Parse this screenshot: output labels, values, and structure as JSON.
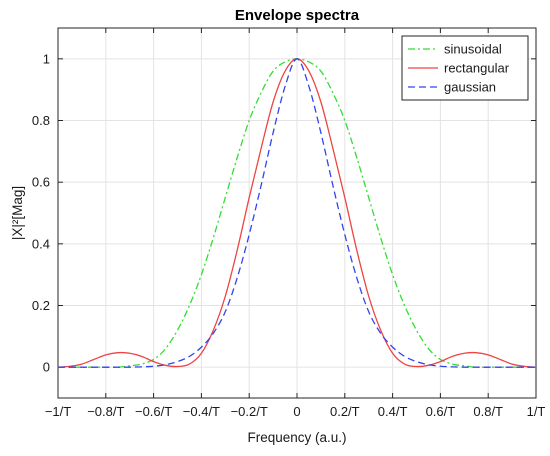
{
  "chart_data": {
    "type": "line",
    "title": "Envelope spectra",
    "xlabel": "Frequency (a.u.)",
    "ylabel": "|X|²[Mag]",
    "xlim": [
      -1,
      1
    ],
    "ylim": [
      -0.1,
      1.1
    ],
    "grid": true,
    "legend_position": "top-right",
    "x_ticks": [
      {
        "value": -1,
        "label": "−1/T"
      },
      {
        "value": -0.8,
        "label": "−0.8/T"
      },
      {
        "value": -0.6,
        "label": "−0.6/T"
      },
      {
        "value": -0.4,
        "label": "−0.4/T"
      },
      {
        "value": -0.2,
        "label": "−0.2/T"
      },
      {
        "value": 0,
        "label": "0"
      },
      {
        "value": 0.2,
        "label": "0.2/T"
      },
      {
        "value": 0.4,
        "label": "0.4/T"
      },
      {
        "value": 0.6,
        "label": "0.6/T"
      },
      {
        "value": 0.8,
        "label": "0.8/T"
      },
      {
        "value": 1,
        "label": "1/T"
      }
    ],
    "y_ticks": [
      {
        "value": 0,
        "label": "0"
      },
      {
        "value": 0.2,
        "label": "0.2"
      },
      {
        "value": 0.4,
        "label": "0.4"
      },
      {
        "value": 0.6,
        "label": "0.6"
      },
      {
        "value": 0.8,
        "label": "0.8"
      },
      {
        "value": 1,
        "label": "1"
      }
    ],
    "x": [
      -1,
      -0.95,
      -0.9,
      -0.85,
      -0.8,
      -0.75,
      -0.7,
      -0.65,
      -0.6,
      -0.55,
      -0.5,
      -0.45,
      -0.4,
      -0.35,
      -0.3,
      -0.25,
      -0.2,
      -0.15,
      -0.1,
      -0.05,
      0,
      0.05,
      0.1,
      0.15,
      0.2,
      0.25,
      0.3,
      0.35,
      0.4,
      0.45,
      0.5,
      0.55,
      0.6,
      0.65,
      0.7,
      0.75,
      0.8,
      0.85,
      0.9,
      0.95,
      1
    ],
    "series": [
      {
        "name": "sinusoidal",
        "color": "#33dd33",
        "dash": "dashdot",
        "values": [
          0,
          0,
          0,
          0,
          0,
          0,
          0.004,
          0.01,
          0.025,
          0.06,
          0.12,
          0.2,
          0.3,
          0.42,
          0.55,
          0.68,
          0.8,
          0.89,
          0.96,
          0.99,
          1,
          0.99,
          0.96,
          0.89,
          0.8,
          0.68,
          0.55,
          0.42,
          0.3,
          0.2,
          0.12,
          0.06,
          0.025,
          0.01,
          0.004,
          0,
          0,
          0,
          0,
          0,
          0
        ]
      },
      {
        "name": "rectangular",
        "color": "#ee4444",
        "dash": "solid",
        "values": [
          0,
          0.003,
          0.01,
          0.025,
          0.04,
          0.047,
          0.045,
          0.035,
          0.018,
          0.006,
          0.002,
          0.01,
          0.045,
          0.12,
          0.23,
          0.38,
          0.55,
          0.71,
          0.86,
          0.96,
          1,
          0.96,
          0.86,
          0.71,
          0.55,
          0.38,
          0.23,
          0.12,
          0.045,
          0.01,
          0.002,
          0.006,
          0.018,
          0.035,
          0.045,
          0.047,
          0.04,
          0.025,
          0.01,
          0.003,
          0
        ]
      },
      {
        "name": "gaussian",
        "color": "#3344ee",
        "dash": "dashed",
        "values": [
          0,
          0,
          0,
          0,
          0,
          0,
          0,
          0.001,
          0.003,
          0.008,
          0.018,
          0.035,
          0.065,
          0.11,
          0.18,
          0.29,
          0.43,
          0.59,
          0.76,
          0.91,
          1,
          0.91,
          0.76,
          0.59,
          0.43,
          0.29,
          0.18,
          0.11,
          0.065,
          0.035,
          0.018,
          0.008,
          0.003,
          0.001,
          0,
          0,
          0,
          0,
          0,
          0,
          0
        ]
      }
    ]
  }
}
